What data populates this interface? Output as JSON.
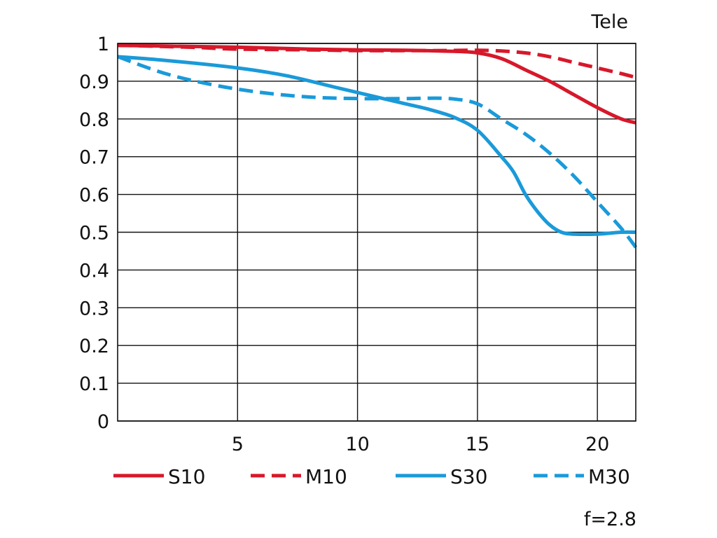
{
  "chart_data": {
    "type": "line",
    "title": "Tele",
    "note": "f=2.8",
    "xlabel": "",
    "ylabel": "",
    "xlim": [
      0,
      21.6
    ],
    "ylim": [
      0,
      1
    ],
    "grid": true,
    "legend_position": "bottom",
    "x_ticks": [
      5,
      10,
      15,
      20
    ],
    "x_tick_labels": [
      "5",
      "10",
      "15",
      "20"
    ],
    "y_ticks": [
      0,
      0.1,
      0.2,
      0.3,
      0.4,
      0.5,
      0.6,
      0.7,
      0.8,
      0.9,
      1
    ],
    "y_tick_labels": [
      "0",
      "0.1",
      "0.2",
      "0.3",
      "0.4",
      "0.5",
      "0.6",
      "0.7",
      "0.8",
      "0.9",
      "1"
    ],
    "series": [
      {
        "name": "S10",
        "color": "#d7182a",
        "dash": "solid",
        "points": [
          [
            0,
            0.995
          ],
          [
            2,
            0.993
          ],
          [
            5,
            0.99
          ],
          [
            8,
            0.985
          ],
          [
            10,
            0.983
          ],
          [
            12,
            0.982
          ],
          [
            14,
            0.979
          ],
          [
            15,
            0.975
          ],
          [
            16,
            0.96
          ],
          [
            17,
            0.93
          ],
          [
            18,
            0.9
          ],
          [
            19,
            0.865
          ],
          [
            20,
            0.83
          ],
          [
            21,
            0.8
          ],
          [
            21.6,
            0.79
          ]
        ]
      },
      {
        "name": "M10",
        "color": "#d7182a",
        "dash": "dashed",
        "points": [
          [
            0,
            0.995
          ],
          [
            3,
            0.99
          ],
          [
            5,
            0.985
          ],
          [
            8,
            0.983
          ],
          [
            10,
            0.981
          ],
          [
            13,
            0.981
          ],
          [
            15,
            0.982
          ],
          [
            16,
            0.98
          ],
          [
            17,
            0.975
          ],
          [
            18,
            0.965
          ],
          [
            19,
            0.95
          ],
          [
            20,
            0.935
          ],
          [
            21,
            0.92
          ],
          [
            21.6,
            0.91
          ]
        ]
      },
      {
        "name": "S30",
        "color": "#1a9ad9",
        "dash": "solid",
        "points": [
          [
            0,
            0.965
          ],
          [
            2,
            0.955
          ],
          [
            5,
            0.935
          ],
          [
            7,
            0.915
          ],
          [
            9,
            0.885
          ],
          [
            10,
            0.87
          ],
          [
            11,
            0.855
          ],
          [
            12,
            0.84
          ],
          [
            13,
            0.825
          ],
          [
            14,
            0.805
          ],
          [
            15,
            0.77
          ],
          [
            16,
            0.7
          ],
          [
            16.5,
            0.66
          ],
          [
            17,
            0.6
          ],
          [
            17.5,
            0.555
          ],
          [
            18,
            0.52
          ],
          [
            18.5,
            0.5
          ],
          [
            19,
            0.495
          ],
          [
            20,
            0.495
          ],
          [
            21,
            0.5
          ],
          [
            21.6,
            0.5
          ]
        ]
      },
      {
        "name": "M30",
        "color": "#1a9ad9",
        "dash": "dashed",
        "points": [
          [
            0,
            0.965
          ],
          [
            2,
            0.92
          ],
          [
            4,
            0.89
          ],
          [
            6,
            0.87
          ],
          [
            8,
            0.858
          ],
          [
            10,
            0.854
          ],
          [
            12,
            0.854
          ],
          [
            13,
            0.855
          ],
          [
            14,
            0.853
          ],
          [
            15,
            0.84
          ],
          [
            16,
            0.8
          ],
          [
            17,
            0.76
          ],
          [
            18,
            0.71
          ],
          [
            19,
            0.65
          ],
          [
            20,
            0.58
          ],
          [
            21,
            0.51
          ],
          [
            21.6,
            0.46
          ]
        ]
      }
    ]
  }
}
